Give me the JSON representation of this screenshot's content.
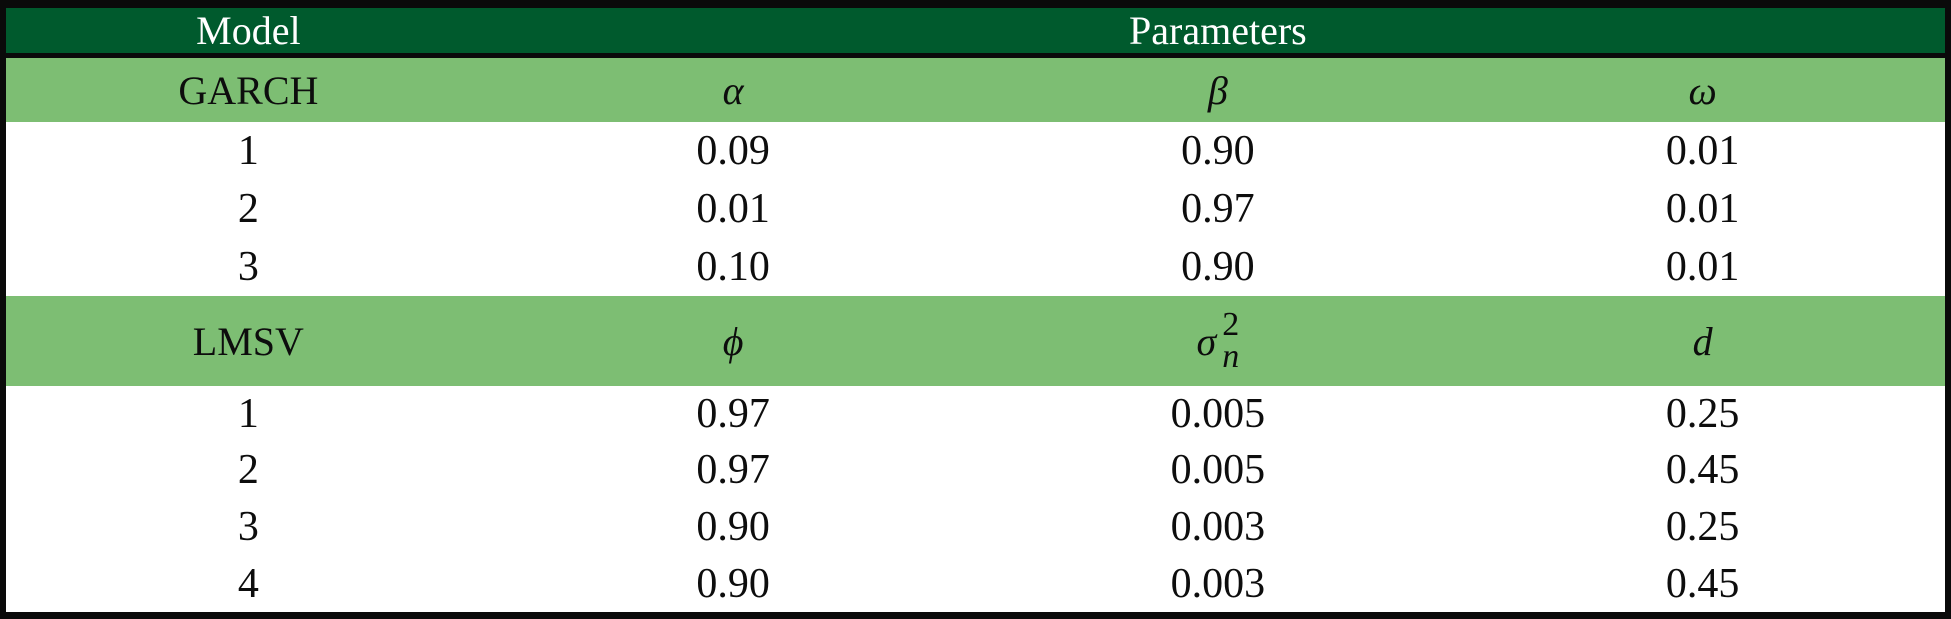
{
  "colors": {
    "dark_green": "#005A2D",
    "light_green": "#7DBE73",
    "border_black": "#0A0A0A",
    "header_text": "#FFFFFF",
    "body_text": "#0D0D0D"
  },
  "header": {
    "model_label": "Model",
    "parameters_label": "Parameters"
  },
  "garch": {
    "label": "GARCH",
    "param_headers": {
      "p1": "α",
      "p2": "β",
      "p3": "ω"
    },
    "rows": [
      {
        "id": "1",
        "alpha": "0.09",
        "beta": "0.90",
        "omega": "0.01"
      },
      {
        "id": "2",
        "alpha": "0.01",
        "beta": "0.97",
        "omega": "0.01"
      },
      {
        "id": "3",
        "alpha": "0.10",
        "beta": "0.90",
        "omega": "0.01"
      }
    ]
  },
  "lmsv": {
    "label": "LMSV",
    "param_headers": {
      "p1": "ϕ",
      "p2_base": "σ",
      "p2_sup": "2",
      "p2_sub": "n",
      "p3": "d"
    },
    "rows": [
      {
        "id": "1",
        "phi": "0.97",
        "sigma2n": "0.005",
        "d": "0.25"
      },
      {
        "id": "2",
        "phi": "0.97",
        "sigma2n": "0.005",
        "d": "0.45"
      },
      {
        "id": "3",
        "phi": "0.90",
        "sigma2n": "0.003",
        "d": "0.25"
      },
      {
        "id": "4",
        "phi": "0.90",
        "sigma2n": "0.003",
        "d": "0.45"
      }
    ]
  },
  "chart_data": {
    "type": "table",
    "header": [
      "Model",
      "Parameters"
    ],
    "sections": [
      {
        "model": "GARCH",
        "parameters": [
          "alpha",
          "beta",
          "omega"
        ],
        "rows": [
          [
            1,
            0.09,
            0.9,
            0.01
          ],
          [
            2,
            0.01,
            0.97,
            0.01
          ],
          [
            3,
            0.1,
            0.9,
            0.01
          ]
        ]
      },
      {
        "model": "LMSV",
        "parameters": [
          "phi",
          "sigma_n^2",
          "d"
        ],
        "rows": [
          [
            1,
            0.97,
            0.005,
            0.25
          ],
          [
            2,
            0.97,
            0.005,
            0.45
          ],
          [
            3,
            0.9,
            0.003,
            0.25
          ],
          [
            4,
            0.9,
            0.003,
            0.45
          ]
        ]
      }
    ]
  }
}
